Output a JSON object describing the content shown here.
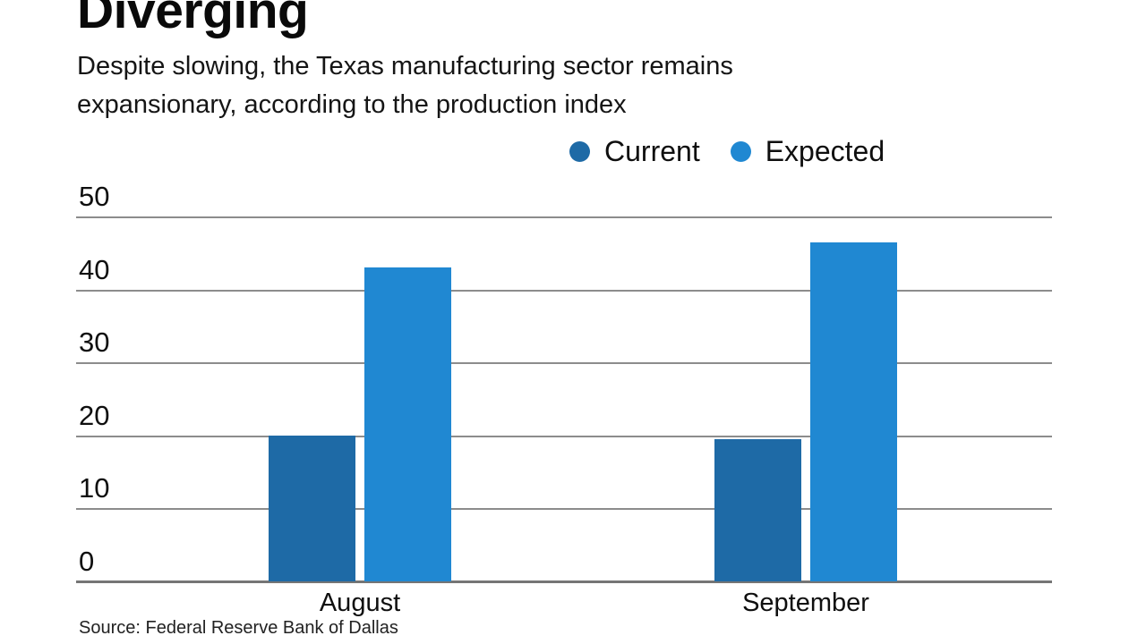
{
  "page": {
    "title": "Diverging",
    "subtitle_lines": [
      "Despite slowing, the Texas manufacturing sector remains",
      "expansionary, according to the production index"
    ],
    "source": "Source: Federal Reserve Bank of Dallas"
  },
  "chart_data": {
    "type": "bar",
    "title": "Diverging",
    "subtitle": "Despite slowing, the Texas manufacturing sector remains expansionary, according to the production index",
    "categories": [
      "August",
      "September"
    ],
    "series": [
      {
        "name": "Current",
        "color": "#1e6aa6",
        "values": [
          20,
          19.5
        ]
      },
      {
        "name": "Expected",
        "color": "#2088d2",
        "values": [
          43,
          46.5
        ]
      }
    ],
    "xlabel": "",
    "ylabel": "",
    "ylim": [
      0,
      50
    ],
    "yticks": [
      0,
      10,
      20,
      30,
      40,
      50
    ],
    "grid": true,
    "legend_position": "top-right",
    "source": "Source: Federal Reserve Bank of Dallas"
  },
  "colors": {
    "current": "#1e6aa6",
    "expected": "#2088d2",
    "gridline": "#8c8c8c",
    "baseline": "#757575",
    "text": "#111111",
    "background": "#ffffff"
  }
}
